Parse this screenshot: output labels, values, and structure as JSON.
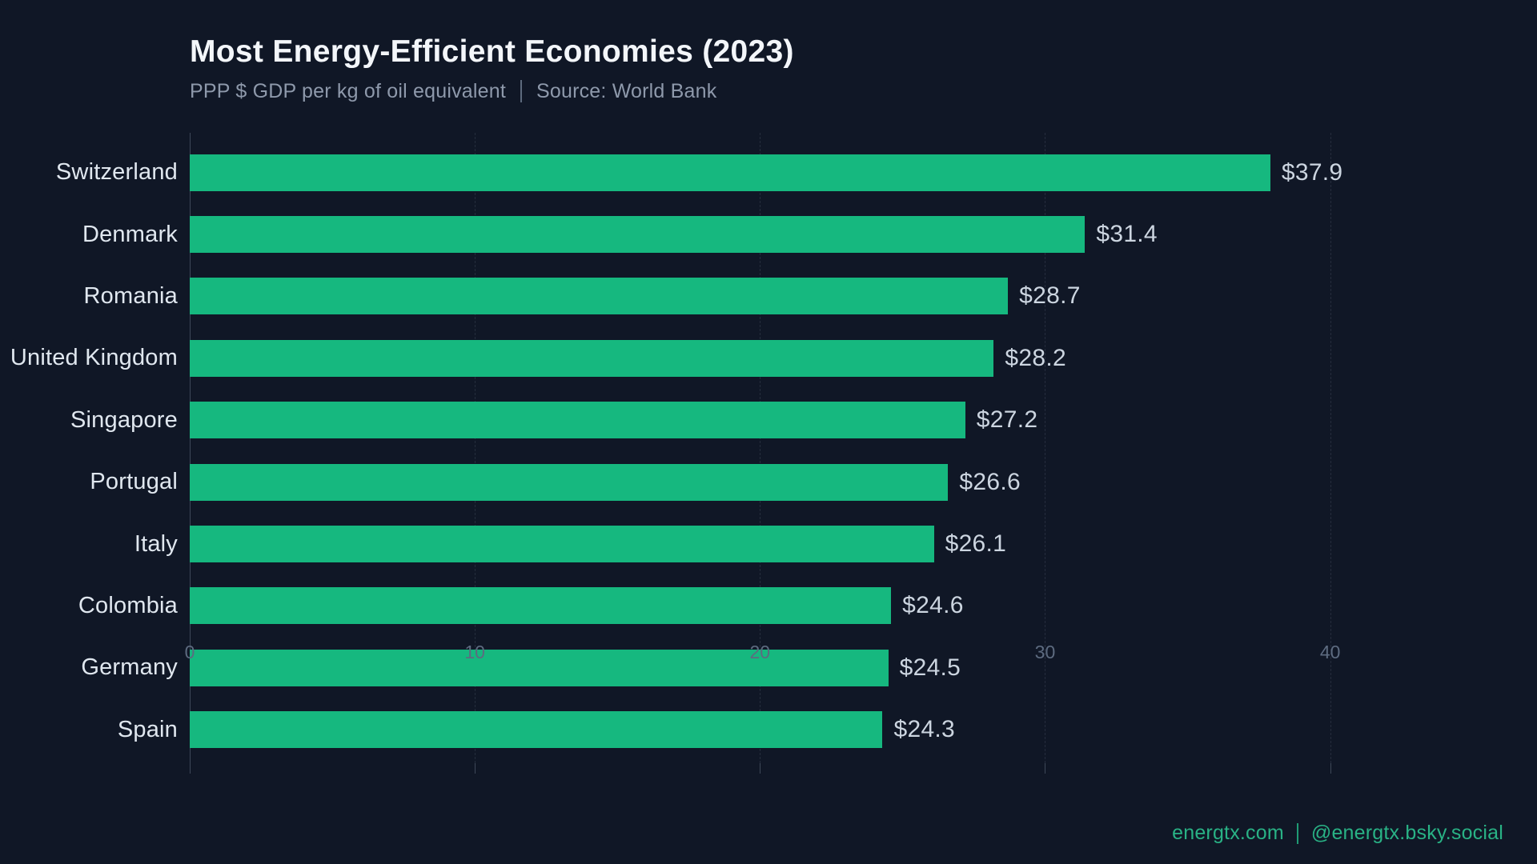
{
  "header": {
    "title": "Most Energy-Efficient Economies (2023)",
    "subtitle": "PPP $ GDP per kg of oil equivalent",
    "source": "Source: World Bank"
  },
  "chart_data": {
    "type": "bar",
    "orientation": "horizontal",
    "title": "Most Energy-Efficient Economies (2023)",
    "xlabel": "",
    "ylabel": "",
    "categories": [
      "Switzerland",
      "Denmark",
      "Romania",
      "United Kingdom",
      "Singapore",
      "Portugal",
      "Italy",
      "Colombia",
      "Germany",
      "Spain"
    ],
    "values": [
      37.9,
      31.4,
      28.7,
      28.2,
      27.2,
      26.6,
      26.1,
      24.6,
      24.5,
      24.3
    ],
    "value_prefix": "$",
    "xticks": [
      0,
      10,
      20,
      30,
      40
    ],
    "xlim": [
      0,
      42.2
    ],
    "grid": "vertical-dashed",
    "legend": "none",
    "bar_color": "#16b87f",
    "background_color": "#101726"
  },
  "footer": {
    "site": "energtx.com",
    "handle": "@energtx.bsky.social"
  }
}
